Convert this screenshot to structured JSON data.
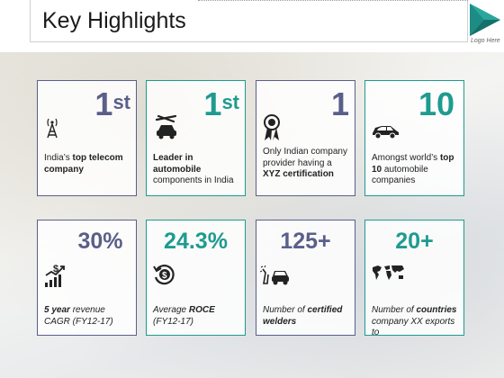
{
  "header": {
    "title": "Key Highlights",
    "logo_text": "Logo Here"
  },
  "colors": {
    "blue": "#5a5f8a",
    "teal": "#1e9b8f"
  },
  "cards": [
    {
      "value": "1",
      "suffix": "st",
      "icon": "telecom-tower-icon",
      "text_parts": [
        "India’s ",
        "top telecom company",
        ""
      ],
      "color": "blue"
    },
    {
      "value": "1",
      "suffix": "st",
      "icon": "car-repair-icon",
      "text_parts": [
        "",
        "Leader in automobile",
        " components in India"
      ],
      "color": "teal"
    },
    {
      "value": "1",
      "suffix": "",
      "icon": "certificate-medal-icon",
      "text_parts": [
        "Only Indian company provider having a ",
        "XYZ certification",
        ""
      ],
      "color": "blue"
    },
    {
      "value": "10",
      "suffix": "",
      "icon": "car-icon",
      "text_parts": [
        "Amongst world’s ",
        "top 10",
        " automobile companies"
      ],
      "color": "teal"
    },
    {
      "value": "30%",
      "suffix": "",
      "icon": "revenue-growth-icon",
      "text_parts": [
        "",
        "5 year",
        " revenue CAGR (FY12-17)"
      ],
      "color": "blue"
    },
    {
      "value": "24.3%",
      "suffix": "",
      "icon": "dollar-return-icon",
      "text_parts": [
        "Average ",
        "ROCE",
        " (FY12-17)"
      ],
      "color": "teal"
    },
    {
      "value": "125+",
      "suffix": "",
      "icon": "welder-car-icon",
      "text_parts": [
        "Number of ",
        "certified welders",
        ""
      ],
      "color": "blue"
    },
    {
      "value": "20+",
      "suffix": "",
      "icon": "world-map-icon",
      "text_parts": [
        "Number of ",
        "countries",
        " company XX exports to"
      ],
      "color": "teal"
    }
  ]
}
